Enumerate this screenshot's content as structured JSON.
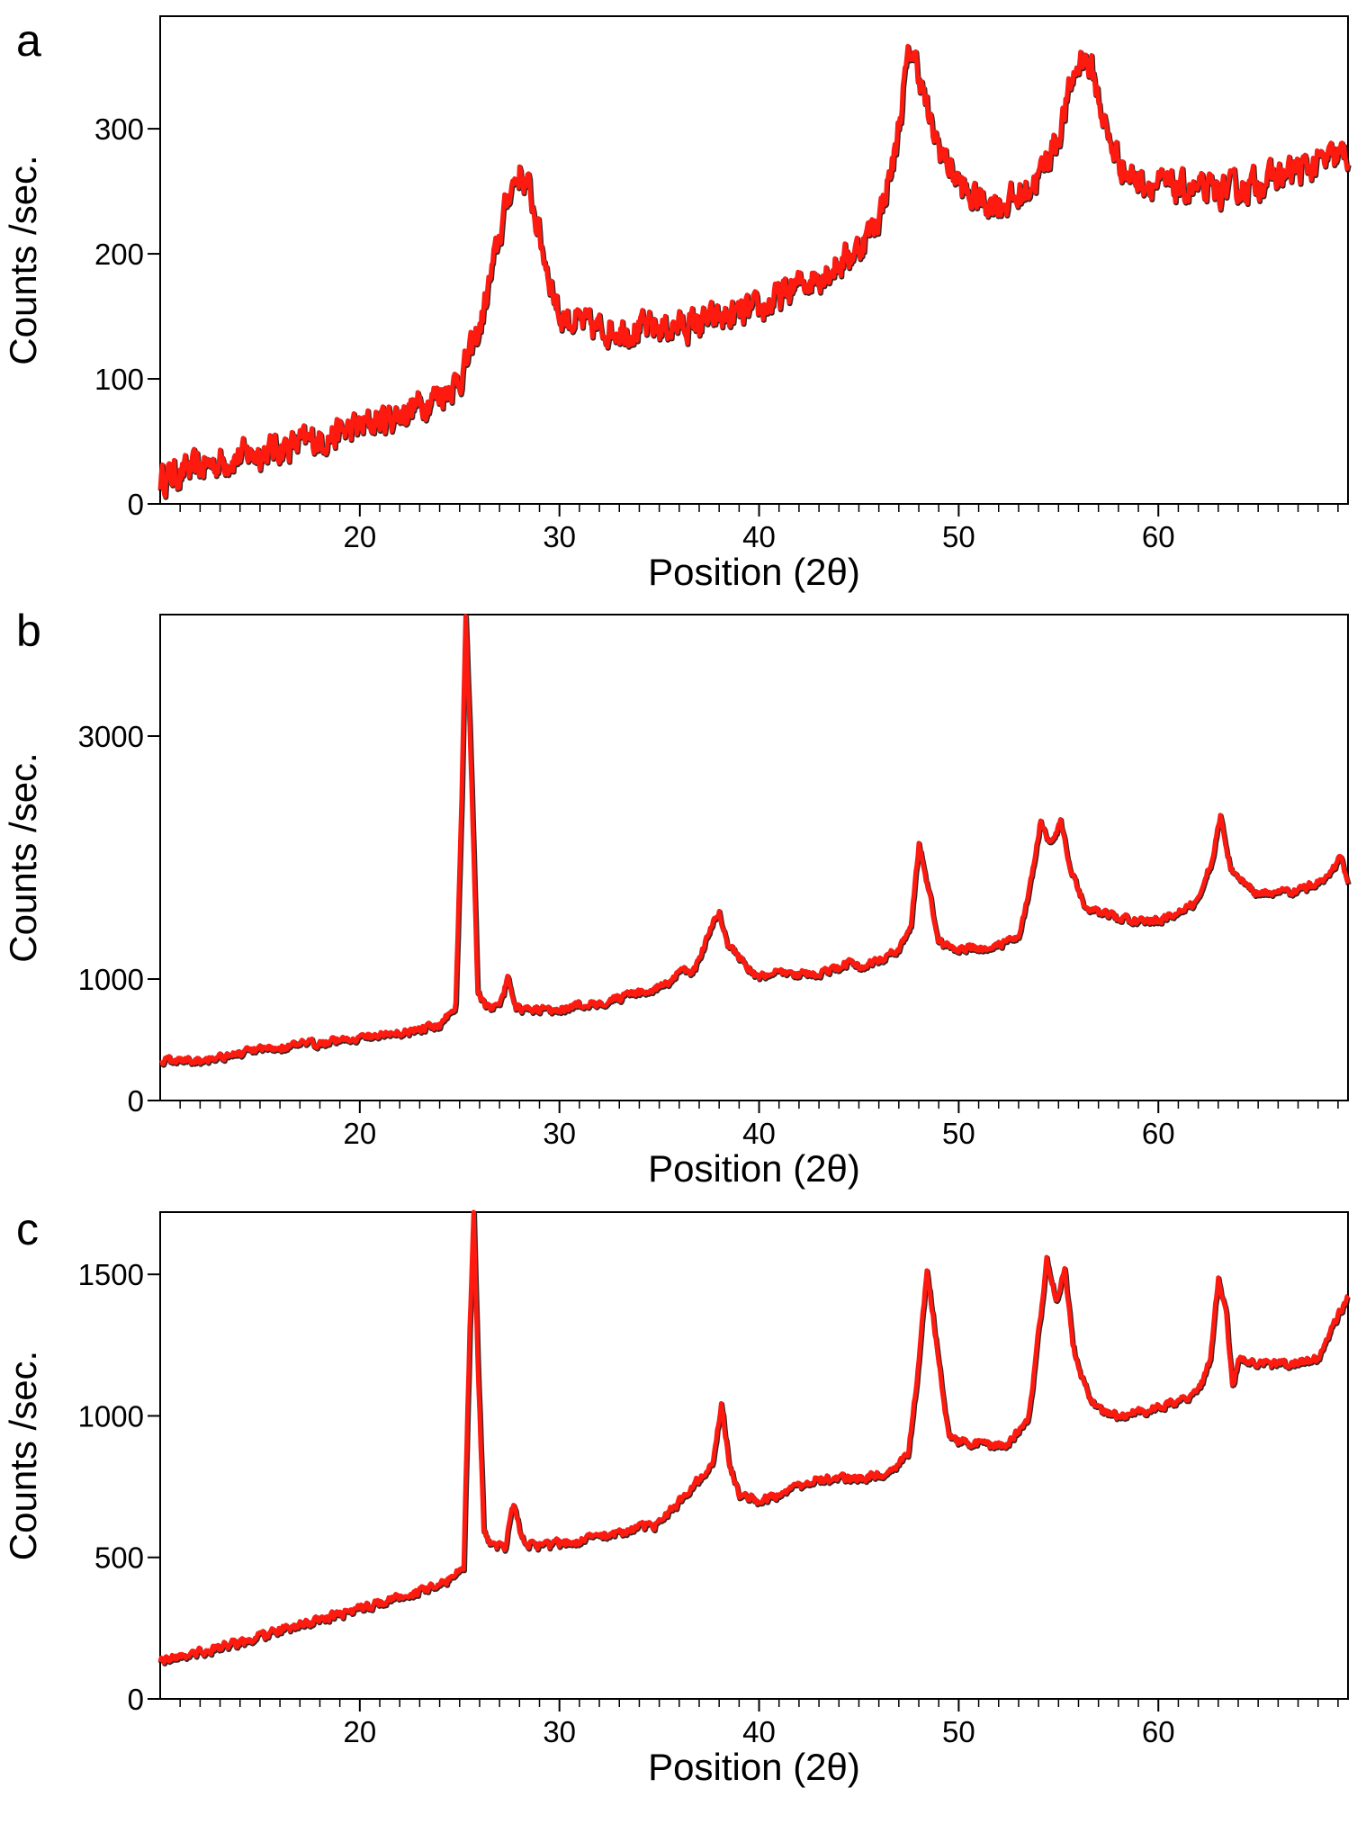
{
  "chart_data": [
    {
      "type": "line",
      "panel_letter": "a",
      "xlabel": "Position (2θ)",
      "ylabel": "Counts /sec.",
      "xlim": [
        10,
        69.5
      ],
      "ylim": [
        0,
        390
      ],
      "xticks": [
        20,
        30,
        40,
        50,
        60
      ],
      "yticks": [
        0,
        100,
        200,
        300
      ],
      "series": [
        {
          "color": "#ff1a10",
          "noise": 12,
          "x": [
            10,
            12,
            14,
            16,
            18,
            20,
            22,
            24,
            25,
            26,
            26.8,
            27.5,
            28,
            28.5,
            29.2,
            30,
            31,
            32,
            34,
            36,
            38,
            40,
            42,
            44,
            45,
            46,
            46.8,
            47.3,
            47.6,
            48,
            48.6,
            49.5,
            50.5,
            52,
            53,
            54,
            55,
            55.7,
            56.2,
            56.7,
            57.5,
            58.5,
            60,
            62,
            63,
            64,
            66,
            68,
            69.5
          ],
          "y": [
            20,
            30,
            38,
            45,
            52,
            62,
            72,
            88,
            100,
            140,
            200,
            252,
            265,
            250,
            200,
            150,
            145,
            140,
            140,
            142,
            148,
            155,
            175,
            192,
            205,
            230,
            280,
            340,
            365,
            345,
            300,
            270,
            245,
            240,
            245,
            262,
            295,
            340,
            360,
            345,
            290,
            262,
            255,
            250,
            250,
            252,
            262,
            272,
            280
          ]
        }
      ]
    },
    {
      "type": "line",
      "panel_letter": "b",
      "xlabel": "Position (2θ)",
      "ylabel": "Counts /sec.",
      "xlim": [
        10,
        69.5
      ],
      "ylim": [
        0,
        4000
      ],
      "xticks": [
        20,
        30,
        40,
        50,
        60
      ],
      "yticks": [
        0,
        1000,
        3000
      ],
      "series": [
        {
          "color": "#ff1a10",
          "noise": 30,
          "x": [
            10,
            12,
            14,
            16,
            18,
            20,
            22,
            24,
            24.8,
            25.1,
            25.3,
            25.6,
            25.9,
            26.3,
            27,
            27.4,
            27.8,
            28.5,
            30,
            32,
            34,
            35.5,
            36,
            36.5,
            37,
            37.6,
            38,
            38.4,
            39,
            39.8,
            41,
            42.5,
            44,
            44.5,
            45,
            46,
            47,
            47.6,
            48,
            48.4,
            49,
            50,
            51,
            52,
            53,
            53.6,
            54.1,
            54.6,
            55.1,
            55.6,
            56.3,
            57,
            58,
            60,
            61,
            62,
            62.7,
            63.1,
            63.6,
            65,
            67,
            68.5,
            69.1,
            69.5
          ],
          "y": [
            330,
            340,
            390,
            440,
            480,
            520,
            560,
            620,
            800,
            2500,
            4000,
            2600,
            900,
            760,
            780,
            1000,
            780,
            740,
            760,
            810,
            880,
            970,
            1080,
            1040,
            1150,
            1450,
            1550,
            1300,
            1180,
            1030,
            1050,
            1040,
            1080,
            1150,
            1100,
            1150,
            1250,
            1450,
            2100,
            1800,
            1300,
            1250,
            1250,
            1280,
            1350,
            1800,
            2300,
            2100,
            2280,
            1900,
            1600,
            1550,
            1500,
            1480,
            1550,
            1650,
            2000,
            2350,
            1900,
            1700,
            1720,
            1850,
            2000,
            1800
          ]
        }
      ]
    },
    {
      "type": "line",
      "panel_letter": "c",
      "xlabel": "Position (2θ)",
      "ylabel": "Counts /sec.",
      "xlim": [
        10,
        69.5
      ],
      "ylim": [
        0,
        1720
      ],
      "xticks": [
        20,
        30,
        40,
        50,
        60
      ],
      "yticks": [
        0,
        500,
        1000,
        1500
      ],
      "series": [
        {
          "color": "#ff1a10",
          "noise": 14,
          "x": [
            10,
            12,
            14,
            16,
            18,
            20,
            22,
            24,
            25.2,
            25.5,
            25.7,
            25.9,
            26.2,
            26.6,
            27.3,
            27.7,
            28.1,
            29,
            31,
            33,
            35,
            36,
            37,
            37.7,
            38.1,
            38.5,
            39,
            40,
            41.5,
            43,
            45,
            46.5,
            47.5,
            48,
            48.4,
            48.8,
            49.5,
            51,
            52.5,
            53.5,
            54,
            54.4,
            54.9,
            55.3,
            55.7,
            56.3,
            57,
            58,
            60,
            62,
            62.6,
            63,
            63.4,
            63.7,
            64,
            66,
            68,
            69,
            69.5
          ],
          "y": [
            140,
            165,
            200,
            240,
            280,
            320,
            360,
            400,
            470,
            1300,
            1720,
            1200,
            600,
            540,
            540,
            700,
            560,
            540,
            560,
            590,
            620,
            700,
            780,
            850,
            1050,
            830,
            720,
            700,
            740,
            780,
            780,
            800,
            880,
            1200,
            1520,
            1300,
            920,
            900,
            900,
            1000,
            1300,
            1550,
            1400,
            1520,
            1250,
            1100,
            1020,
            1000,
            1030,
            1080,
            1200,
            1500,
            1350,
            1100,
            1200,
            1180,
            1200,
            1350,
            1430
          ]
        }
      ]
    }
  ]
}
